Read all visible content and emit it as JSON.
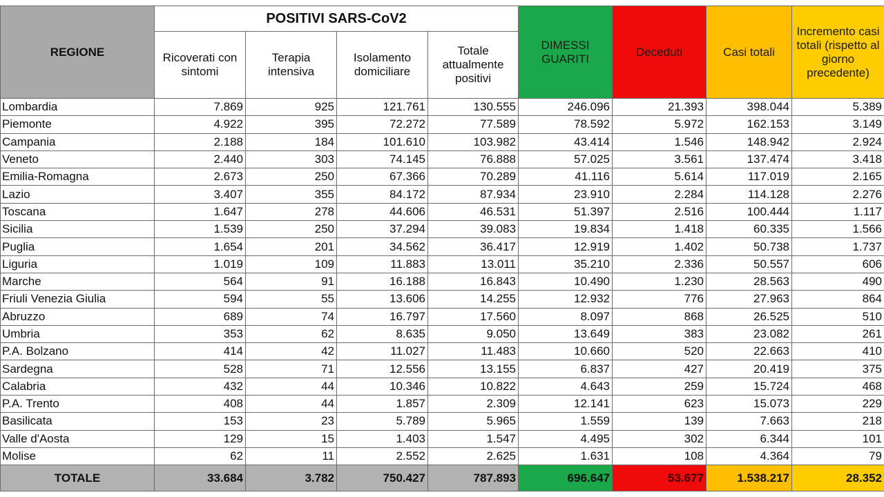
{
  "headers": {
    "region": "REGIONE",
    "group": "POSITIVI SARS-CoV2",
    "ricoverati": "Ricoverati con sintomi",
    "terapia": "Terapia intensiva",
    "isolamento": "Isolamento domiciliare",
    "totale_positivi": "Totale attualmente positivi",
    "dimessi": "DIMESSI GUARITI",
    "deceduti": "Deceduti",
    "casi_totali": "Casi totali",
    "incremento": "Incremento casi totali (rispetto al giorno precedente)"
  },
  "colors": {
    "region_header": "#a9a9a9",
    "dimessi": "#1aa84a",
    "deceduti": "#f00a0a",
    "casi_totali": "#ffbf00",
    "incremento": "#ffcc00",
    "totale_row": "#b2b2b2"
  },
  "rows": [
    [
      "Lombardia",
      "7.869",
      "925",
      "121.761",
      "130.555",
      "246.096",
      "21.393",
      "398.044",
      "5.389"
    ],
    [
      "Piemonte",
      "4.922",
      "395",
      "72.272",
      "77.589",
      "78.592",
      "5.972",
      "162.153",
      "3.149"
    ],
    [
      "Campania",
      "2.188",
      "184",
      "101.610",
      "103.982",
      "43.414",
      "1.546",
      "148.942",
      "2.924"
    ],
    [
      "Veneto",
      "2.440",
      "303",
      "74.145",
      "76.888",
      "57.025",
      "3.561",
      "137.474",
      "3.418"
    ],
    [
      "Emilia-Romagna",
      "2.673",
      "250",
      "67.366",
      "70.289",
      "41.116",
      "5.614",
      "117.019",
      "2.165"
    ],
    [
      "Lazio",
      "3.407",
      "355",
      "84.172",
      "87.934",
      "23.910",
      "2.284",
      "114.128",
      "2.276"
    ],
    [
      "Toscana",
      "1.647",
      "278",
      "44.606",
      "46.531",
      "51.397",
      "2.516",
      "100.444",
      "1.117"
    ],
    [
      "Sicilia",
      "1.539",
      "250",
      "37.294",
      "39.083",
      "19.834",
      "1.418",
      "60.335",
      "1.566"
    ],
    [
      "Puglia",
      "1.654",
      "201",
      "34.562",
      "36.417",
      "12.919",
      "1.402",
      "50.738",
      "1.737"
    ],
    [
      "Liguria",
      "1.019",
      "109",
      "11.883",
      "13.011",
      "35.210",
      "2.336",
      "50.557",
      "606"
    ],
    [
      "Marche",
      "564",
      "91",
      "16.188",
      "16.843",
      "10.490",
      "1.230",
      "28.563",
      "490"
    ],
    [
      "Friuli Venezia Giulia",
      "594",
      "55",
      "13.606",
      "14.255",
      "12.932",
      "776",
      "27.963",
      "864"
    ],
    [
      "Abruzzo",
      "689",
      "74",
      "16.797",
      "17.560",
      "8.097",
      "868",
      "26.525",
      "510"
    ],
    [
      "Umbria",
      "353",
      "62",
      "8.635",
      "9.050",
      "13.649",
      "383",
      "23.082",
      "261"
    ],
    [
      "P.A. Bolzano",
      "414",
      "42",
      "11.027",
      "11.483",
      "10.660",
      "520",
      "22.663",
      "410"
    ],
    [
      "Sardegna",
      "528",
      "71",
      "12.556",
      "13.155",
      "6.837",
      "427",
      "20.419",
      "375"
    ],
    [
      "Calabria",
      "432",
      "44",
      "10.346",
      "10.822",
      "4.643",
      "259",
      "15.724",
      "468"
    ],
    [
      "P.A. Trento",
      "408",
      "44",
      "1.857",
      "2.309",
      "12.141",
      "623",
      "15.073",
      "229"
    ],
    [
      "Basilicata",
      "153",
      "23",
      "5.789",
      "5.965",
      "1.559",
      "139",
      "7.663",
      "218"
    ],
    [
      "Valle d'Aosta",
      "129",
      "15",
      "1.403",
      "1.547",
      "4.495",
      "302",
      "6.344",
      "101"
    ],
    [
      "Molise",
      "62",
      "11",
      "2.552",
      "2.625",
      "1.631",
      "108",
      "4.364",
      "79"
    ]
  ],
  "totale": {
    "label": "TOTALE",
    "ricoverati": "33.684",
    "terapia": "3.782",
    "isolamento": "750.427",
    "totale_positivi": "787.893",
    "dimessi": "696.647",
    "deceduti": "53.677",
    "casi_totali": "1.538.217",
    "incremento": "28.352"
  }
}
